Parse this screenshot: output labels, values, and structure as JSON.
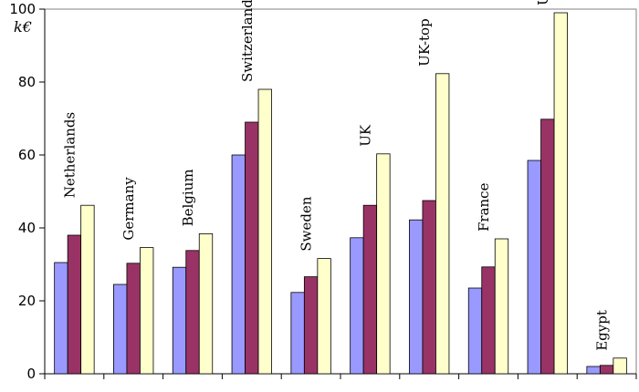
{
  "chart_data": {
    "type": "bar",
    "ylabel": "k€",
    "xlabel": "",
    "title": "",
    "ylim": [
      0,
      100
    ],
    "yticks": [
      0,
      20,
      40,
      60,
      80,
      100
    ],
    "grid": false,
    "legend": "none",
    "categories": [
      "Netherlands",
      "Germany",
      "Belgium",
      "Switzerland",
      "Sweden",
      "UK",
      "UK-top",
      "France",
      "USA",
      "Egypt"
    ],
    "series": [
      {
        "color": "#9999ff",
        "values": [
          30.5,
          24.5,
          29.2,
          60,
          22.3,
          37.3,
          42.2,
          23.5,
          58.5,
          2
        ]
      },
      {
        "color": "#993366",
        "values": [
          38,
          30.3,
          33.8,
          69,
          26.6,
          46.2,
          47.5,
          29.3,
          69.8,
          2.3
        ]
      },
      {
        "color": "#ffffcc",
        "values": [
          46.2,
          34.6,
          38.4,
          78,
          31.6,
          60.3,
          82.3,
          37,
          99,
          4.3
        ]
      }
    ]
  }
}
